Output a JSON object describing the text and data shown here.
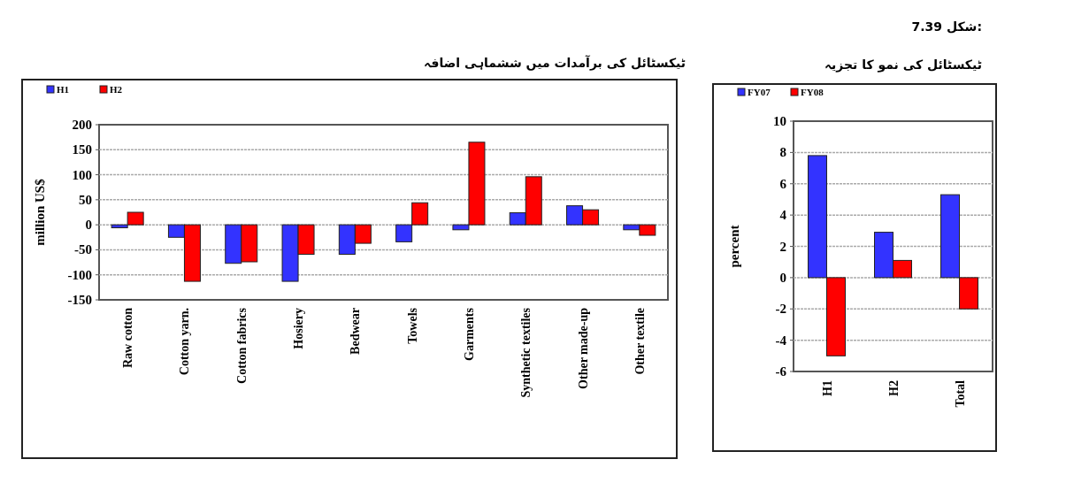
{
  "chart_data": [
    {
      "type": "bar",
      "title": "ٹیکسٹائل کی برآمدات میں ششماہی اضافہ",
      "ylabel": "million US$",
      "categories": [
        "Raw cotton",
        "Cotton yarn.",
        "Cotton fabrics",
        "Hosiery",
        "Bedwear",
        "Towels",
        "Garments",
        "Synthetic textiles",
        "Other made-up",
        "Other textile"
      ],
      "series": [
        {
          "name": "H1",
          "color": "#3333ff",
          "values": [
            -6,
            -25,
            -77,
            -113,
            -59,
            -34,
            -10,
            24,
            38,
            -10
          ]
        },
        {
          "name": "H2",
          "color": "#ff0000",
          "values": [
            25,
            -113,
            -74,
            -59,
            -37,
            44,
            165,
            96,
            30,
            -21
          ]
        }
      ],
      "ylim": [
        -150,
        200
      ],
      "yticks": [
        -150,
        -100,
        -50,
        0,
        50,
        100,
        150,
        200
      ],
      "grid": "y",
      "legend": "top left"
    },
    {
      "type": "bar",
      "title": "ٹیکسٹائل کی نمو کا تجزیہ",
      "annotations": [
        "شکل 7.39:"
      ],
      "ylabel": "percent",
      "categories": [
        "H1",
        "H2",
        "Total"
      ],
      "series": [
        {
          "name": "FY07",
          "color": "#3333ff",
          "values": [
            7.8,
            2.9,
            5.3
          ]
        },
        {
          "name": "FY08",
          "color": "#ff0000",
          "values": [
            -5.0,
            1.1,
            -2.0
          ]
        }
      ],
      "ylim": [
        -6,
        10
      ],
      "yticks": [
        -6,
        -4,
        -2,
        0,
        2,
        4,
        6,
        8,
        10
      ],
      "grid": "y",
      "legend": "top left"
    }
  ]
}
